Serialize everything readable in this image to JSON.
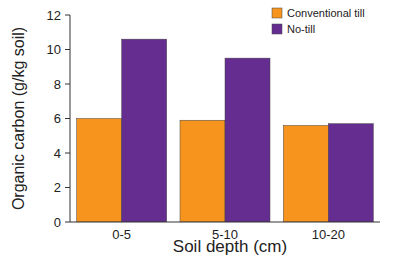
{
  "chart_data": {
    "type": "bar",
    "categories": [
      "0-5",
      "5-10",
      "10-20"
    ],
    "series": [
      {
        "name": "Conventional till",
        "color": "#f7941d",
        "values": [
          6.0,
          5.9,
          5.6
        ]
      },
      {
        "name": "No-till",
        "color": "#662d91",
        "values": [
          10.6,
          9.5,
          5.7
        ]
      }
    ],
    "x_label": "Soil depth (cm)",
    "y_label": "Organic carbon (g/kg soil)",
    "ylim": [
      0,
      12
    ],
    "yticks": [
      0,
      2,
      4,
      6,
      8,
      10,
      12
    ],
    "grid": false,
    "legend": "upper right"
  }
}
